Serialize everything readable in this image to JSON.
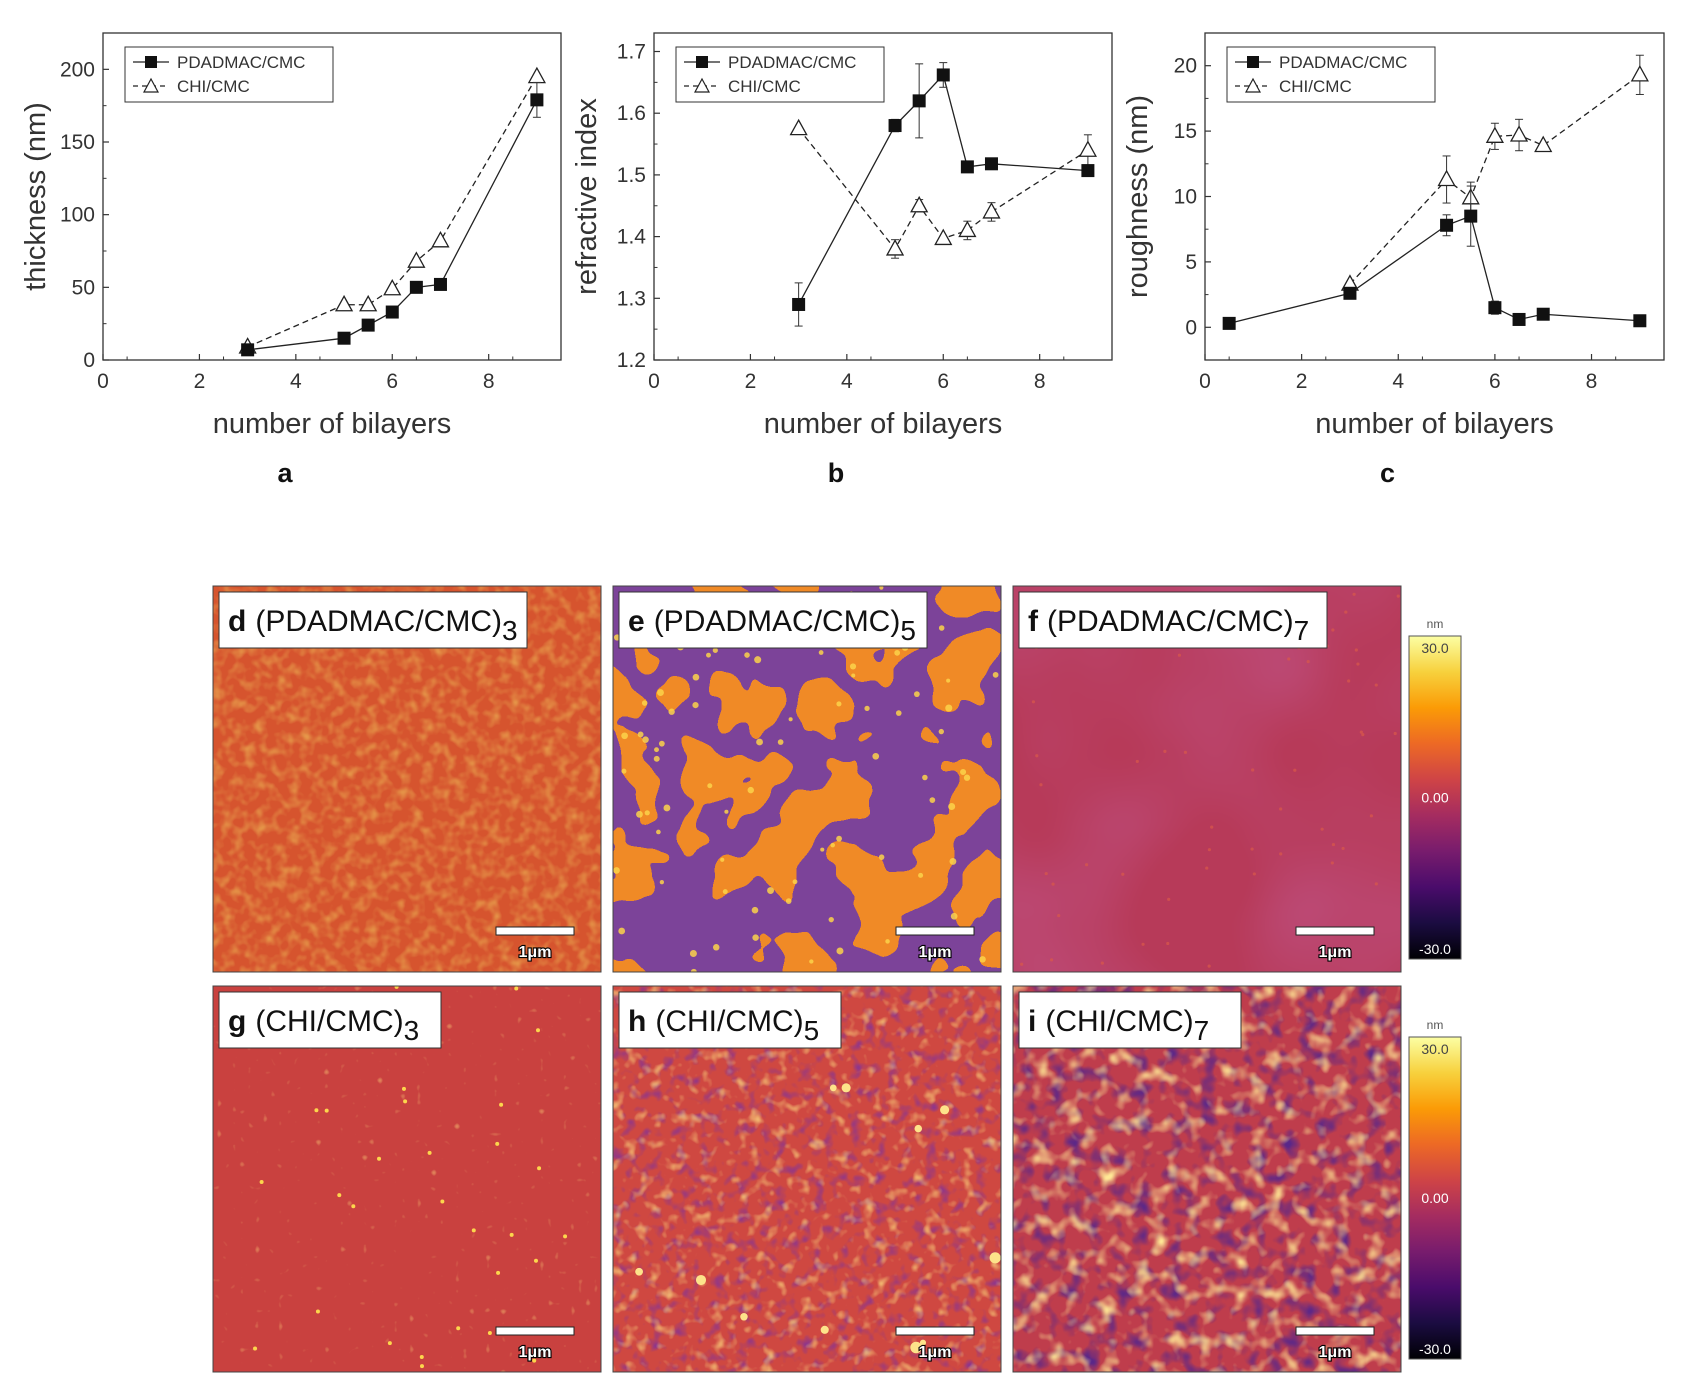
{
  "chart_data": [
    {
      "type": "line",
      "panel_label": "a",
      "title": "",
      "xlabel": "number of bilayers",
      "ylabel": "thickness (nm)",
      "xlim": [
        0,
        9.5
      ],
      "ylim": [
        0,
        225
      ],
      "xticks": [
        0,
        2,
        4,
        6,
        8
      ],
      "yticks": [
        0,
        50,
        100,
        150,
        200
      ],
      "tick_decimals": 0,
      "legend_position": "top-left",
      "series": [
        {
          "name": "PDADMAC/CMC",
          "marker": "filled-square",
          "line": "solid",
          "x": [
            3,
            5,
            5.5,
            6,
            6.5,
            7,
            9
          ],
          "y": [
            7,
            15,
            24,
            33,
            50,
            52,
            179
          ],
          "err": [
            0,
            0,
            0,
            0,
            0,
            0,
            12
          ]
        },
        {
          "name": "CHI/CMC",
          "marker": "open-triangle",
          "line": "dashed",
          "x": [
            3,
            5,
            5.5,
            6,
            6.5,
            7,
            9
          ],
          "y": [
            9,
            38,
            38,
            49,
            68,
            82,
            195
          ],
          "err": [
            0,
            0,
            0,
            0,
            0,
            0,
            0
          ]
        }
      ]
    },
    {
      "type": "line",
      "panel_label": "b",
      "title": "",
      "xlabel": "number of bilayers",
      "ylabel": "refractive index",
      "xlim": [
        0,
        9.5
      ],
      "ylim": [
        1.2,
        1.73
      ],
      "xticks": [
        0,
        2,
        4,
        6,
        8
      ],
      "yticks": [
        1.2,
        1.3,
        1.4,
        1.5,
        1.6,
        1.7
      ],
      "tick_decimals": 1,
      "legend_position": "top-left",
      "series": [
        {
          "name": "PDADMAC/CMC",
          "marker": "filled-square",
          "line": "solid",
          "x": [
            3,
            5,
            5.5,
            6,
            6.5,
            7,
            9
          ],
          "y": [
            1.29,
            1.58,
            1.62,
            1.662,
            1.513,
            1.518,
            1.507
          ],
          "err": [
            0.035,
            0.01,
            0.06,
            0.02,
            0,
            0,
            0
          ]
        },
        {
          "name": "CHI/CMC",
          "marker": "open-triangle",
          "line": "dashed",
          "x": [
            3,
            5,
            5.5,
            6,
            6.5,
            7,
            9
          ],
          "y": [
            1.575,
            1.38,
            1.45,
            1.397,
            1.41,
            1.44,
            1.54
          ],
          "err": [
            0,
            0.015,
            0.01,
            0,
            0.015,
            0.015,
            0.025
          ]
        }
      ]
    },
    {
      "type": "line",
      "panel_label": "c",
      "title": "",
      "xlabel": "number of bilayers",
      "ylabel": "roughness (nm)",
      "xlim": [
        0,
        9.5
      ],
      "ylim": [
        -2.5,
        22.5
      ],
      "xticks": [
        0,
        2,
        4,
        6,
        8
      ],
      "yticks": [
        0,
        5,
        10,
        15,
        20
      ],
      "tick_decimals": 0,
      "legend_position": "top-left",
      "series": [
        {
          "name": "PDADMAC/CMC",
          "marker": "filled-square",
          "line": "solid",
          "x": [
            0.5,
            3,
            5,
            5.5,
            6,
            6.5,
            7,
            9
          ],
          "y": [
            0.3,
            2.6,
            7.8,
            8.5,
            1.5,
            0.6,
            1.0,
            0.5
          ],
          "err": [
            0,
            0,
            0.8,
            2.3,
            0.5,
            0,
            0,
            0
          ]
        },
        {
          "name": "CHI/CMC",
          "marker": "open-triangle",
          "line": "dashed",
          "x": [
            3,
            5,
            5.5,
            6,
            6.5,
            7,
            9
          ],
          "y": [
            3.3,
            11.3,
            9.9,
            14.6,
            14.7,
            13.9,
            19.3
          ],
          "err": [
            0,
            1.8,
            1.2,
            1.0,
            1.2,
            0,
            1.5
          ]
        }
      ]
    }
  ],
  "afm_images": [
    {
      "letter": "d",
      "label": "(PDADMAC/CMC)",
      "subscript": "3",
      "style": "fine-grain",
      "scalebar": "1μm"
    },
    {
      "letter": "e",
      "label": "(PDADMAC/CMC)",
      "subscript": "5",
      "style": "dewetting",
      "scalebar": "1μm"
    },
    {
      "letter": "f",
      "label": "(PDADMAC/CMC)",
      "subscript": "7",
      "style": "smooth",
      "scalebar": "1μm"
    },
    {
      "letter": "g",
      "label": "(CHI/CMC)",
      "subscript": "3",
      "style": "fine-grain-sparse",
      "scalebar": "1μm"
    },
    {
      "letter": "h",
      "label": "(CHI/CMC)",
      "subscript": "5",
      "style": "grainy",
      "scalebar": "1μm"
    },
    {
      "letter": "i",
      "label": "(CHI/CMC)",
      "subscript": "7",
      "style": "coarse",
      "scalebar": "1μm"
    }
  ],
  "colorbars": [
    {
      "unit": "nm",
      "max": "30.0",
      "mid": "0.00",
      "min": "-30.0"
    },
    {
      "unit": "nm",
      "max": "30.0",
      "mid": "0.00",
      "min": "-30.0"
    }
  ],
  "colormap": [
    "#000004",
    "#1b0c41",
    "#4a0c6b",
    "#781c6d",
    "#a52c60",
    "#cf4446",
    "#ed6925",
    "#fb9b06",
    "#f7d13d",
    "#fcffa4"
  ]
}
